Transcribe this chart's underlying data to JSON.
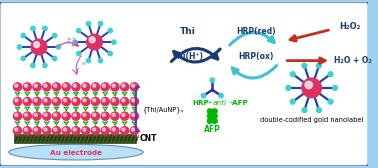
{
  "bg_color": "#a0d0f0",
  "labels": {
    "thi": "Thi",
    "thi_h": "Thi(H⁺)",
    "hrp_red": "HRP(red)",
    "hrp_ox": "HRP(ox)",
    "h2o2": "H₂O₂",
    "h2o_o2": "H₂O + O₂",
    "thi_aunp": "{Thi/AuNP}ₙ",
    "cnt": "CNT",
    "au_electrode": "Au electrode",
    "hrp_anti_afp": "HRP-anti-AFP",
    "afp": "AFP",
    "nanolabel": "double-codified gold nanolabel"
  },
  "colors": {
    "border_color": "#2060c0",
    "dark_blue": "#1a3a7a",
    "cyan_arrow": "#40c0d0",
    "red_arrow": "#c03020",
    "red_bead": "#e03060",
    "blue_spike": "#2040c0",
    "cyan_spike": "#40d0d0",
    "green": "#00b800",
    "cnt_color": "#406020",
    "au_color": "#a0d0f0",
    "bracket_color": "#4040c0",
    "white_bg": "#ffffff"
  }
}
